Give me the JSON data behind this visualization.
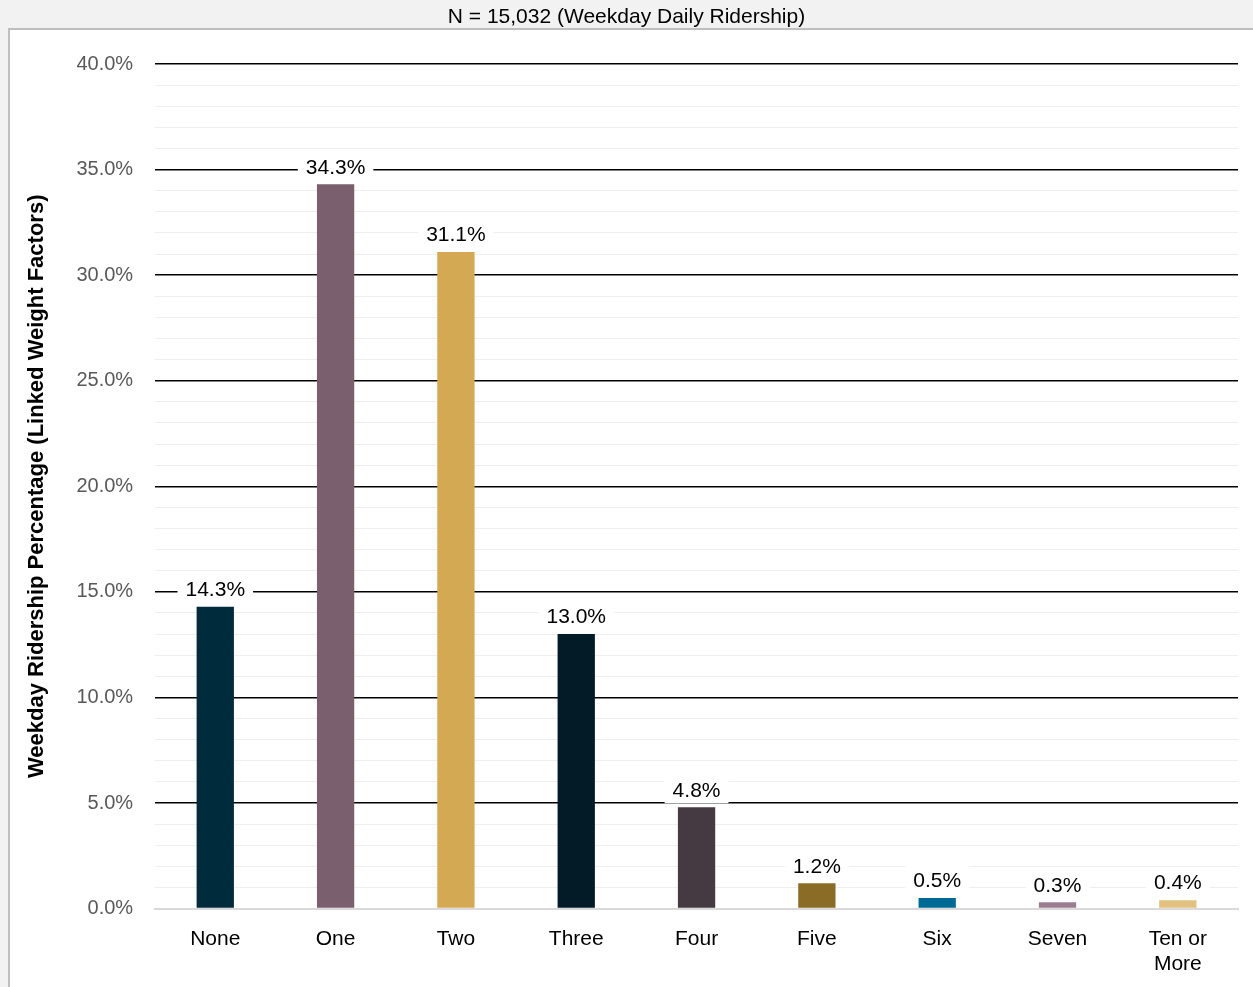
{
  "chart_data": {
    "type": "bar",
    "title": "N = 15,032 (Weekday Daily Ridership)",
    "ylabel": "Weekday Ridership Percentage (Linked Weight Factors)",
    "categories": [
      "None",
      "One",
      "Two",
      "Three",
      "Four",
      "Five",
      "Six",
      "Seven",
      "Ten or More"
    ],
    "values": [
      14.3,
      34.3,
      31.1,
      13.0,
      4.8,
      1.2,
      0.5,
      0.3,
      0.4
    ],
    "colors": [
      "#002b3d",
      "#7a5f6e",
      "#d4a954",
      "#021b26",
      "#463a42",
      "#8b6c26",
      "#006a94",
      "#9b7d92",
      "#e2c07f"
    ],
    "value_labels": [
      "14.3%",
      "34.3%",
      "31.1%",
      "13.0%",
      "4.8%",
      "1.2%",
      "0.5%",
      "0.3%",
      "0.4%"
    ],
    "ylim": [
      0,
      40
    ],
    "yticks": [
      {
        "value": 0,
        "label": "0.0%"
      },
      {
        "value": 1,
        "label": null
      },
      {
        "value": 2,
        "label": null
      },
      {
        "value": 3,
        "label": null
      },
      {
        "value": 4,
        "label": null
      },
      {
        "value": 5,
        "label": "5.0%"
      },
      {
        "value": 6,
        "label": null
      },
      {
        "value": 7,
        "label": null
      },
      {
        "value": 8,
        "label": null
      },
      {
        "value": 9,
        "label": null
      },
      {
        "value": 10,
        "label": "10.0%"
      },
      {
        "value": 11,
        "label": null
      },
      {
        "value": 12,
        "label": null
      },
      {
        "value": 13,
        "label": null
      },
      {
        "value": 14,
        "label": null
      },
      {
        "value": 15,
        "label": "15.0%"
      },
      {
        "value": 16,
        "label": null
      },
      {
        "value": 17,
        "label": null
      },
      {
        "value": 18,
        "label": null
      },
      {
        "value": 19,
        "label": null
      },
      {
        "value": 20,
        "label": "20.0%"
      },
      {
        "value": 21,
        "label": null
      },
      {
        "value": 22,
        "label": null
      },
      {
        "value": 23,
        "label": null
      },
      {
        "value": 24,
        "label": null
      },
      {
        "value": 25,
        "label": "25.0%"
      },
      {
        "value": 26,
        "label": null
      },
      {
        "value": 27,
        "label": null
      },
      {
        "value": 28,
        "label": null
      },
      {
        "value": 29,
        "label": null
      },
      {
        "value": 30,
        "label": "30.0%"
      },
      {
        "value": 31,
        "label": null
      },
      {
        "value": 32,
        "label": null
      },
      {
        "value": 33,
        "label": null
      },
      {
        "value": 34,
        "label": null
      },
      {
        "value": 35,
        "label": "35.0%"
      },
      {
        "value": 36,
        "label": null
      },
      {
        "value": 37,
        "label": null
      },
      {
        "value": 38,
        "label": null
      },
      {
        "value": 39,
        "label": null
      },
      {
        "value": 40,
        "label": "40.0%"
      }
    ],
    "grid": "y"
  }
}
